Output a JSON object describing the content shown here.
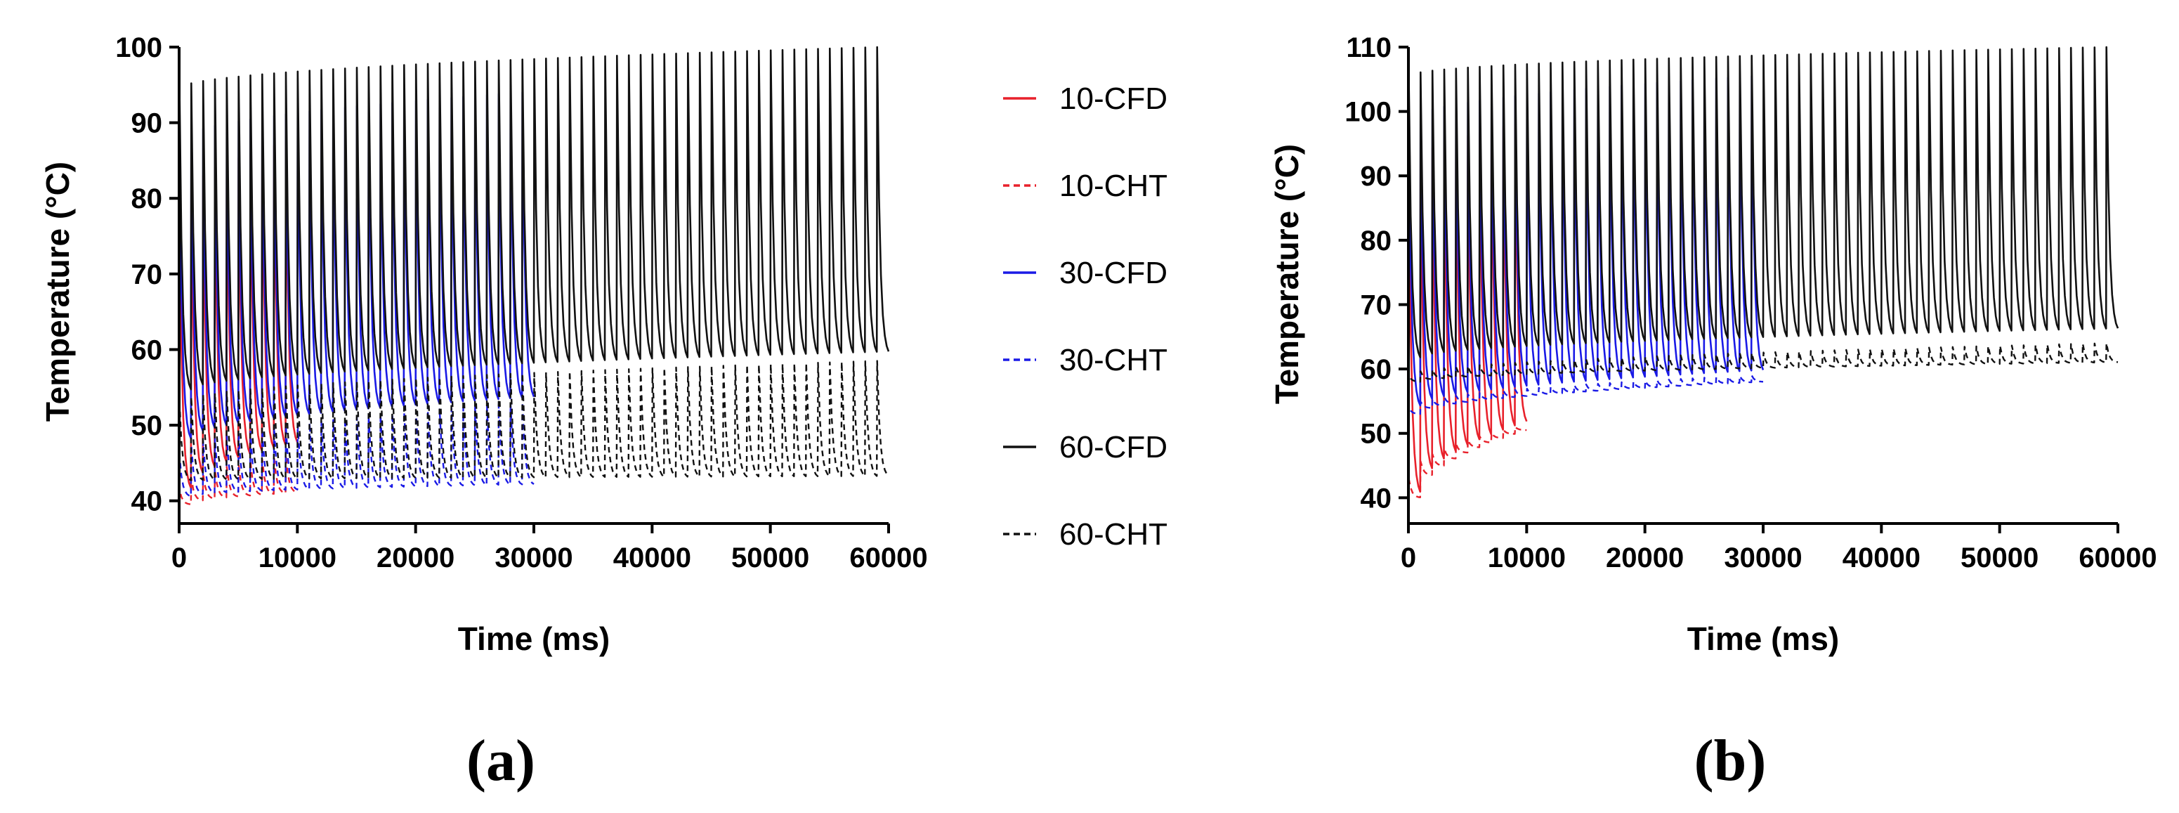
{
  "colors": {
    "10": "#e8212b",
    "30": "#1a1ae6",
    "60": "#111111"
  },
  "legend": [
    {
      "label": "10-CFD",
      "group": "10",
      "style": "solid"
    },
    {
      "label": "10-CHT",
      "group": "10",
      "style": "dashed"
    },
    {
      "label": "30-CFD",
      "group": "30",
      "style": "solid"
    },
    {
      "label": "30-CHT",
      "group": "30",
      "style": "dashed"
    },
    {
      "label": "60-CFD",
      "group": "60",
      "style": "solid"
    },
    {
      "label": "60-CHT",
      "group": "60",
      "style": "dashed"
    }
  ],
  "chart_data": [
    {
      "panel_label": "(a)",
      "type": "line",
      "xlabel": "Time (ms)",
      "ylabel": "Temperature (°C)",
      "xlim": [
        0,
        60000
      ],
      "ylim": [
        37,
        100
      ],
      "xticks": [
        0,
        10000,
        20000,
        30000,
        40000,
        50000,
        60000
      ],
      "yticks": [
        40,
        50,
        60,
        70,
        80,
        90,
        100
      ],
      "xtick_labels": [
        "0",
        "10000",
        "20000",
        "30000",
        "40000",
        "50000",
        "60000"
      ],
      "ytick_labels": [
        "40",
        "50",
        "60",
        "70",
        "80",
        "90",
        "100"
      ],
      "pulse_period_ms": 1000,
      "series": [
        {
          "name": "10-CFD",
          "group": "10",
          "style": "solid",
          "x_end": 10000,
          "base_start": 41,
          "base_end": 47,
          "peak_start": 79,
          "peak_end": 87.5
        },
        {
          "name": "10-CHT",
          "group": "10",
          "style": "dashed",
          "x_end": 10000,
          "base_start": 39.5,
          "base_end": 41,
          "peak_start": 41.5,
          "peak_end": 46
        },
        {
          "name": "30-CFD",
          "group": "30",
          "style": "solid",
          "x_end": 30000,
          "base_start": 47.5,
          "base_end": 53,
          "peak_start": 87.5,
          "peak_end": 94
        },
        {
          "name": "30-CHT",
          "group": "30",
          "style": "dashed",
          "x_end": 30000,
          "base_start": 40.5,
          "base_end": 42,
          "peak_start": 46,
          "peak_end": 53
        },
        {
          "name": "60-CFD",
          "group": "60",
          "style": "solid",
          "x_end": 60000,
          "base_start": 54,
          "base_end": 59,
          "peak_start": 94.5,
          "peak_end": 100
        },
        {
          "name": "60-CHT",
          "group": "60",
          "style": "dashed",
          "x_end": 60000,
          "base_start": 42.5,
          "base_end": 43,
          "peak_start": 53,
          "peak_end": 58.5
        }
      ]
    },
    {
      "panel_label": "(b)",
      "type": "line",
      "xlabel": "Time (ms)",
      "ylabel": "Temperature (°C)",
      "xlim": [
        0,
        60000
      ],
      "ylim": [
        36,
        110
      ],
      "xticks": [
        0,
        10000,
        20000,
        30000,
        40000,
        50000,
        60000
      ],
      "yticks": [
        40,
        50,
        60,
        70,
        80,
        90,
        100,
        110
      ],
      "xtick_labels": [
        "0",
        "10000",
        "20000",
        "30000",
        "40000",
        "50000",
        "60000"
      ],
      "ytick_labels": [
        "40",
        "50",
        "60",
        "70",
        "80",
        "90",
        "100",
        "110"
      ],
      "pulse_period_ms": 1000,
      "series": [
        {
          "name": "10-CFD",
          "group": "10",
          "style": "solid",
          "x_end": 10000,
          "base_start": 40,
          "base_end": 51,
          "peak_start": 91,
          "peak_end": 98
        },
        {
          "name": "10-CHT",
          "group": "10",
          "style": "dashed",
          "x_end": 10000,
          "base_start": 40,
          "base_end": 50.5,
          "peak_start": 43,
          "peak_end": 51
        },
        {
          "name": "30-CFD",
          "group": "30",
          "style": "solid",
          "x_end": 30000,
          "base_start": 53.5,
          "base_end": 59,
          "peak_start": 98.5,
          "peak_end": 105.5
        },
        {
          "name": "30-CHT",
          "group": "30",
          "style": "dashed",
          "x_end": 30000,
          "base_start": 53,
          "base_end": 58,
          "peak_start": 54,
          "peak_end": 59
        },
        {
          "name": "60-CFD",
          "group": "60",
          "style": "solid",
          "x_end": 60000,
          "base_start": 61,
          "base_end": 65.5,
          "peak_start": 105.5,
          "peak_end": 110
        },
        {
          "name": "60-CHT",
          "group": "60",
          "style": "dashed",
          "x_end": 60000,
          "base_start": 58,
          "base_end": 61,
          "peak_start": 59,
          "peak_end": 64
        }
      ]
    }
  ]
}
